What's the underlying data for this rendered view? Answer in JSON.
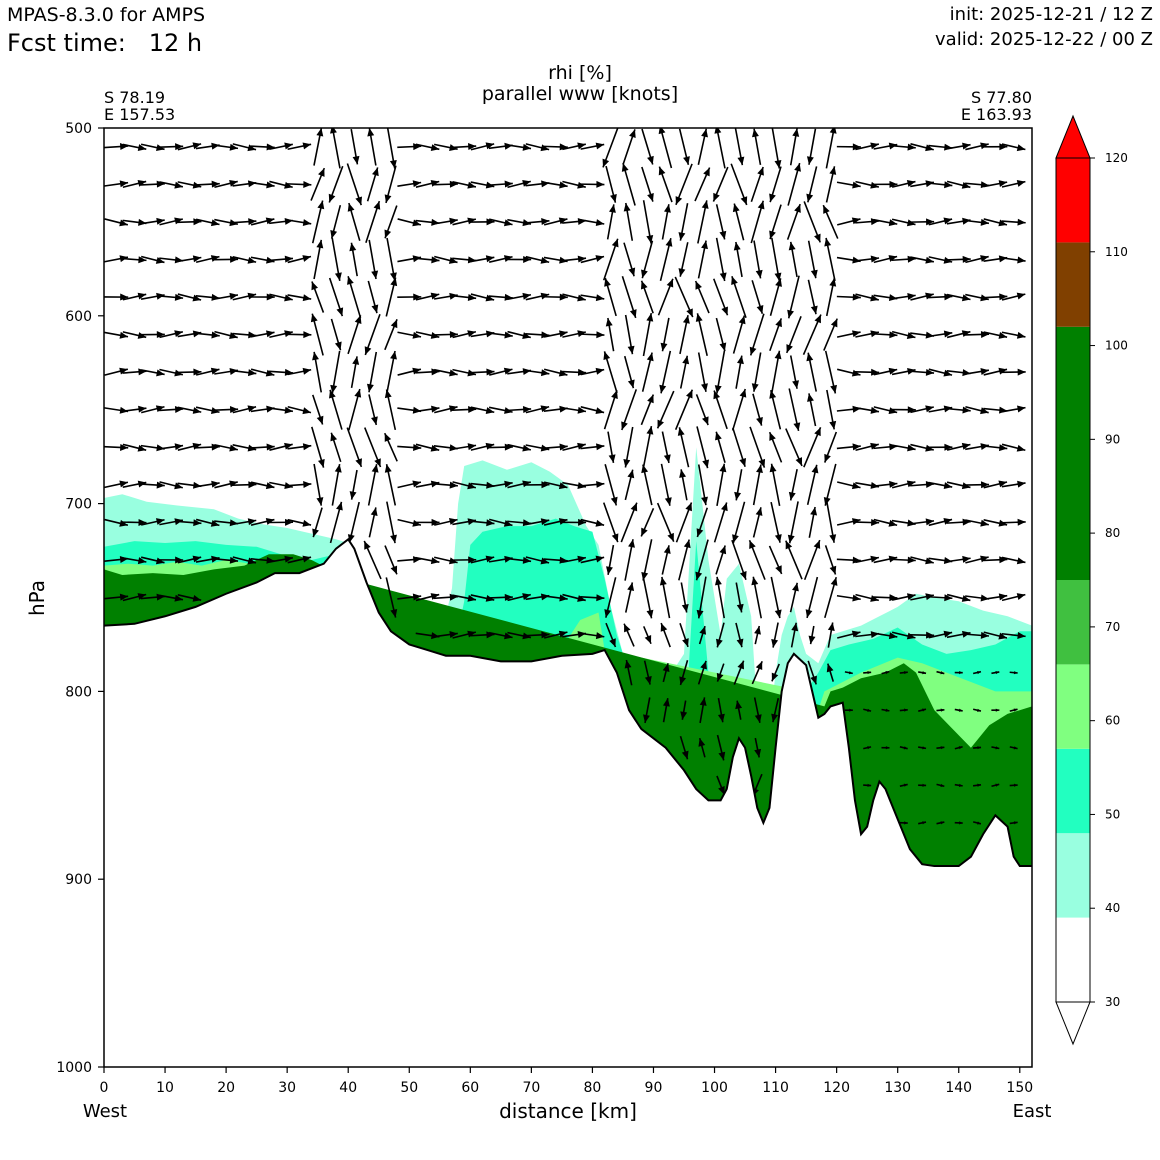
{
  "header": {
    "model": "MPAS-8.3.0 for AMPS",
    "fcst_label": "Fcst time:",
    "fcst_value": "12 h",
    "init": "init: 2025-12-21 / 12 Z",
    "valid": "valid: 2025-12-22 / 00 Z"
  },
  "chart_data": {
    "type": "contour-cross-section",
    "title_line1": "rhi [%]",
    "title_line2": "parallel www [knots]",
    "corner_left": [
      "S 78.19",
      "E 157.53"
    ],
    "corner_right": [
      "S 77.80",
      "E 163.93"
    ],
    "xlabel": "distance [km]",
    "ylabel": "hPa",
    "x_left_label": "West",
    "x_right_label": "East",
    "xlim": [
      0,
      152
    ],
    "ylim": [
      1000,
      500
    ],
    "x_ticks": [
      0,
      10,
      20,
      30,
      40,
      50,
      60,
      70,
      80,
      90,
      100,
      110,
      120,
      130,
      140,
      150
    ],
    "y_ticks": [
      500,
      600,
      700,
      800,
      900,
      1000
    ],
    "colorbar": {
      "levels": [
        30,
        40,
        50,
        60,
        70,
        80,
        90,
        100,
        110,
        120
      ],
      "bands": [
        {
          "from": 30,
          "to": 39,
          "color": "#ffffff"
        },
        {
          "from": 39,
          "to": 48,
          "color": "#99ffe0"
        },
        {
          "from": 48,
          "to": 57,
          "color": "#22ffc0"
        },
        {
          "from": 57,
          "to": 66,
          "color": "#80ff80"
        },
        {
          "from": 66,
          "to": 75,
          "color": "#40c040"
        },
        {
          "from": 75,
          "to": 102,
          "color": "#008000"
        },
        {
          "from": 102,
          "to": 111,
          "color": "#804000"
        },
        {
          "from": 111,
          "to": 120,
          "color": "#ff0000"
        }
      ],
      "extend": "both"
    },
    "terrain": [
      [
        0,
        765
      ],
      [
        5,
        764
      ],
      [
        10,
        760
      ],
      [
        15,
        755
      ],
      [
        20,
        748
      ],
      [
        25,
        742
      ],
      [
        28,
        737
      ],
      [
        32,
        737
      ],
      [
        36,
        732
      ],
      [
        38,
        724
      ],
      [
        40,
        719
      ],
      [
        41,
        724
      ],
      [
        43,
        742
      ],
      [
        45,
        758
      ],
      [
        47,
        768
      ],
      [
        50,
        775
      ],
      [
        53,
        778
      ],
      [
        56,
        781
      ],
      [
        60,
        781
      ],
      [
        65,
        784
      ],
      [
        70,
        784
      ],
      [
        75,
        781
      ],
      [
        80,
        780
      ],
      [
        82,
        778
      ],
      [
        84,
        790
      ],
      [
        86,
        810
      ],
      [
        88,
        820
      ],
      [
        92,
        830
      ],
      [
        95,
        842
      ],
      [
        97,
        852
      ],
      [
        99,
        858
      ],
      [
        101,
        858
      ],
      [
        102,
        852
      ],
      [
        103,
        835
      ],
      [
        104,
        825
      ],
      [
        105,
        830
      ],
      [
        106,
        845
      ],
      [
        107,
        862
      ],
      [
        108,
        870
      ],
      [
        109,
        862
      ],
      [
        110,
        830
      ],
      [
        111,
        800
      ],
      [
        112,
        785
      ],
      [
        113,
        780
      ],
      [
        115,
        786
      ],
      [
        116,
        800
      ],
      [
        117,
        814
      ],
      [
        118,
        812
      ],
      [
        119,
        808
      ],
      [
        121,
        806
      ],
      [
        122,
        830
      ],
      [
        123,
        858
      ],
      [
        124,
        876
      ],
      [
        125,
        872
      ],
      [
        126,
        858
      ],
      [
        127,
        848
      ],
      [
        128,
        852
      ],
      [
        130,
        868
      ],
      [
        132,
        884
      ],
      [
        134,
        892
      ],
      [
        136,
        893
      ],
      [
        140,
        893
      ],
      [
        142,
        888
      ],
      [
        144,
        876
      ],
      [
        146,
        866
      ],
      [
        148,
        872
      ],
      [
        149,
        888
      ],
      [
        150,
        893
      ],
      [
        152,
        893
      ]
    ],
    "moisture_bands": [
      {
        "rhi_level": 40,
        "color": "#99ffe0",
        "upper": [
          [
            0,
            697
          ],
          [
            3,
            695
          ],
          [
            7,
            699
          ],
          [
            12,
            701
          ],
          [
            18,
            703
          ],
          [
            22,
            708
          ],
          [
            26,
            711
          ],
          [
            30,
            713
          ],
          [
            34,
            716
          ],
          [
            38,
            719
          ],
          [
            40,
            721
          ],
          [
            43,
            742
          ],
          [
            45,
            760
          ],
          [
            48,
            766
          ],
          [
            53,
            764
          ],
          [
            56,
            760
          ],
          [
            57,
            745
          ],
          [
            58,
            700
          ],
          [
            59,
            680
          ],
          [
            62,
            677
          ],
          [
            66,
            682
          ],
          [
            70,
            678
          ],
          [
            73,
            683
          ],
          [
            76,
            690
          ],
          [
            79,
            712
          ],
          [
            81,
            722
          ],
          [
            83,
            755
          ],
          [
            85,
            780
          ],
          [
            88,
            785
          ],
          [
            91,
            788
          ],
          [
            93,
            790
          ],
          [
            95,
            780
          ],
          [
            97,
            670
          ],
          [
            99,
            730
          ],
          [
            101,
            770
          ],
          [
            102,
            740
          ],
          [
            104,
            732
          ],
          [
            106,
            760
          ],
          [
            107,
            810
          ],
          [
            108,
            850
          ],
          [
            109,
            820
          ],
          [
            110,
            790
          ],
          [
            111,
            770
          ],
          [
            112,
            760
          ],
          [
            113,
            755
          ],
          [
            114,
            770
          ],
          [
            115,
            780
          ],
          [
            117,
            785
          ],
          [
            119,
            770
          ],
          [
            121,
            768
          ],
          [
            124,
            765
          ],
          [
            127,
            760
          ],
          [
            130,
            755
          ],
          [
            133,
            748
          ],
          [
            136,
            750
          ],
          [
            140,
            752
          ],
          [
            144,
            757
          ],
          [
            148,
            760
          ],
          [
            152,
            765
          ]
        ]
      },
      {
        "rhi_level": 50,
        "color": "#22ffc0",
        "upper": [
          [
            0,
            723
          ],
          [
            5,
            720
          ],
          [
            10,
            721
          ],
          [
            15,
            720
          ],
          [
            20,
            722
          ],
          [
            25,
            723
          ],
          [
            30,
            728
          ],
          [
            34,
            730
          ],
          [
            38,
            727
          ],
          [
            40,
            723
          ],
          [
            43,
            742
          ],
          [
            45,
            758
          ],
          [
            50,
            772
          ],
          [
            55,
            772
          ],
          [
            58,
            768
          ],
          [
            59,
            752
          ],
          [
            60,
            722
          ],
          [
            62,
            715
          ],
          [
            66,
            712
          ],
          [
            70,
            712
          ],
          [
            74,
            708
          ],
          [
            77,
            712
          ],
          [
            80,
            715
          ],
          [
            82,
            740
          ],
          [
            84,
            770
          ],
          [
            86,
            790
          ],
          [
            88,
            800
          ],
          [
            92,
            815
          ],
          [
            95,
            830
          ],
          [
            97,
            720
          ],
          [
            99,
            790
          ],
          [
            101,
            840
          ],
          [
            104,
            840
          ],
          [
            106,
            850
          ],
          [
            108,
            855
          ],
          [
            110,
            850
          ],
          [
            112,
            830
          ],
          [
            113,
            810
          ],
          [
            115,
            800
          ],
          [
            117,
            790
          ],
          [
            119,
            778
          ],
          [
            122,
            775
          ],
          [
            126,
            772
          ],
          [
            130,
            766
          ],
          [
            134,
            775
          ],
          [
            138,
            780
          ],
          [
            142,
            778
          ],
          [
            146,
            775
          ],
          [
            150,
            768
          ],
          [
            152,
            768
          ]
        ]
      },
      {
        "rhi_level": 60,
        "color": "#80ff80",
        "upper": [
          [
            0,
            733
          ],
          [
            4,
            732
          ],
          [
            8,
            733
          ],
          [
            12,
            731
          ],
          [
            16,
            733
          ],
          [
            20,
            730
          ],
          [
            24,
            732
          ],
          [
            28,
            727
          ],
          [
            32,
            730
          ],
          [
            36,
            734
          ],
          [
            38,
            737
          ],
          [
            40,
            730
          ],
          [
            44,
            755
          ],
          [
            48,
            776
          ],
          [
            55,
            778
          ],
          [
            58,
            776
          ],
          [
            60,
            772
          ],
          [
            64,
            772
          ],
          [
            68,
            770
          ],
          [
            72,
            770
          ],
          [
            76,
            772
          ],
          [
            78,
            762
          ],
          [
            81,
            758
          ],
          [
            82,
            778
          ],
          [
            115,
            800
          ],
          [
            117,
            810
          ],
          [
            118,
            800
          ],
          [
            121,
            795
          ],
          [
            124,
            790
          ],
          [
            127,
            786
          ],
          [
            130,
            782
          ],
          [
            134,
            785
          ],
          [
            138,
            790
          ],
          [
            142,
            795
          ],
          [
            146,
            800
          ],
          [
            150,
            800
          ],
          [
            152,
            800
          ]
        ]
      },
      {
        "rhi_level": 80,
        "color": "#008000",
        "upper": [
          [
            0,
            735
          ],
          [
            3,
            738
          ],
          [
            8,
            737
          ],
          [
            13,
            738
          ],
          [
            18,
            735
          ],
          [
            23,
            733
          ],
          [
            27,
            727
          ],
          [
            31,
            727
          ],
          [
            34,
            730
          ],
          [
            37,
            735
          ],
          [
            38,
            737
          ],
          [
            37.5,
            738
          ],
          [
            118,
            808
          ],
          [
            119,
            800
          ],
          [
            121,
            798
          ],
          [
            124,
            793
          ],
          [
            128,
            790
          ],
          [
            131,
            785
          ],
          [
            133,
            790
          ],
          [
            136,
            810
          ],
          [
            139,
            820
          ],
          [
            142,
            830
          ],
          [
            145,
            818
          ],
          [
            148,
            812
          ],
          [
            152,
            808
          ]
        ]
      }
    ],
    "wind_vectors": {
      "rows_hpa": [
        510,
        530,
        550,
        570,
        590,
        610,
        630,
        650,
        670,
        690,
        710,
        730,
        750,
        770,
        790,
        810,
        830,
        850,
        870
      ],
      "spacing_km": 3,
      "units": "knots, cross-section-parallel"
    }
  }
}
